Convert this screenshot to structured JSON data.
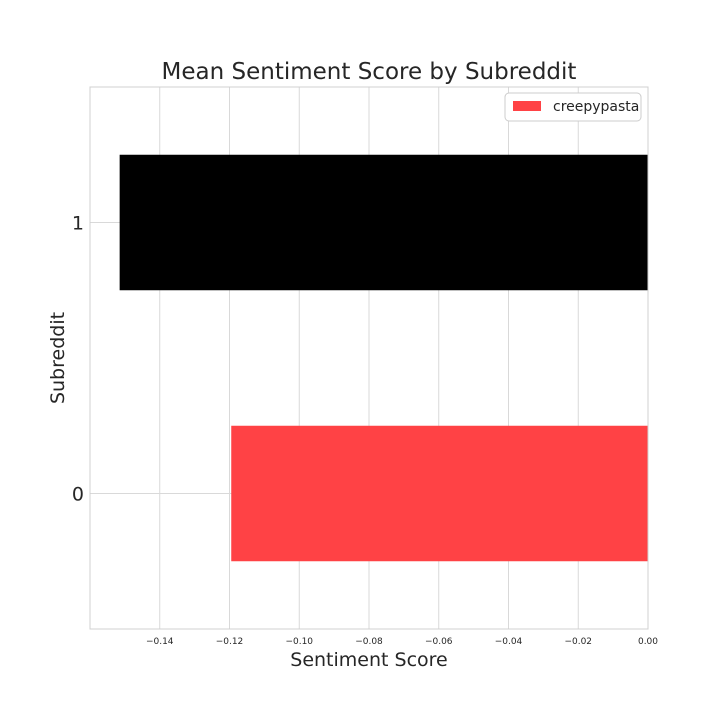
{
  "chart_data": {
    "type": "bar",
    "orientation": "horizontal",
    "title": "Mean Sentiment Score by Subreddit",
    "xlabel": "Sentiment Score",
    "ylabel": "Subreddit",
    "categories": [
      "0",
      "1"
    ],
    "values": [
      -0.1195,
      -0.1515
    ],
    "bar_colors": [
      "#ff4245",
      "#000000"
    ],
    "xlim": [
      -0.16,
      0.0
    ],
    "xticks": [
      -0.14,
      -0.12,
      -0.1,
      -0.08,
      -0.06,
      -0.04,
      -0.02,
      0.0
    ],
    "xtick_labels": [
      "−0.14",
      "−0.12",
      "−0.10",
      "−0.08",
      "−0.06",
      "−0.04",
      "−0.02",
      "0.00"
    ],
    "grid": true,
    "legend": {
      "placement": "top-right",
      "entries": [
        {
          "label": "creepypasta",
          "color": "#ff4245"
        }
      ]
    }
  }
}
